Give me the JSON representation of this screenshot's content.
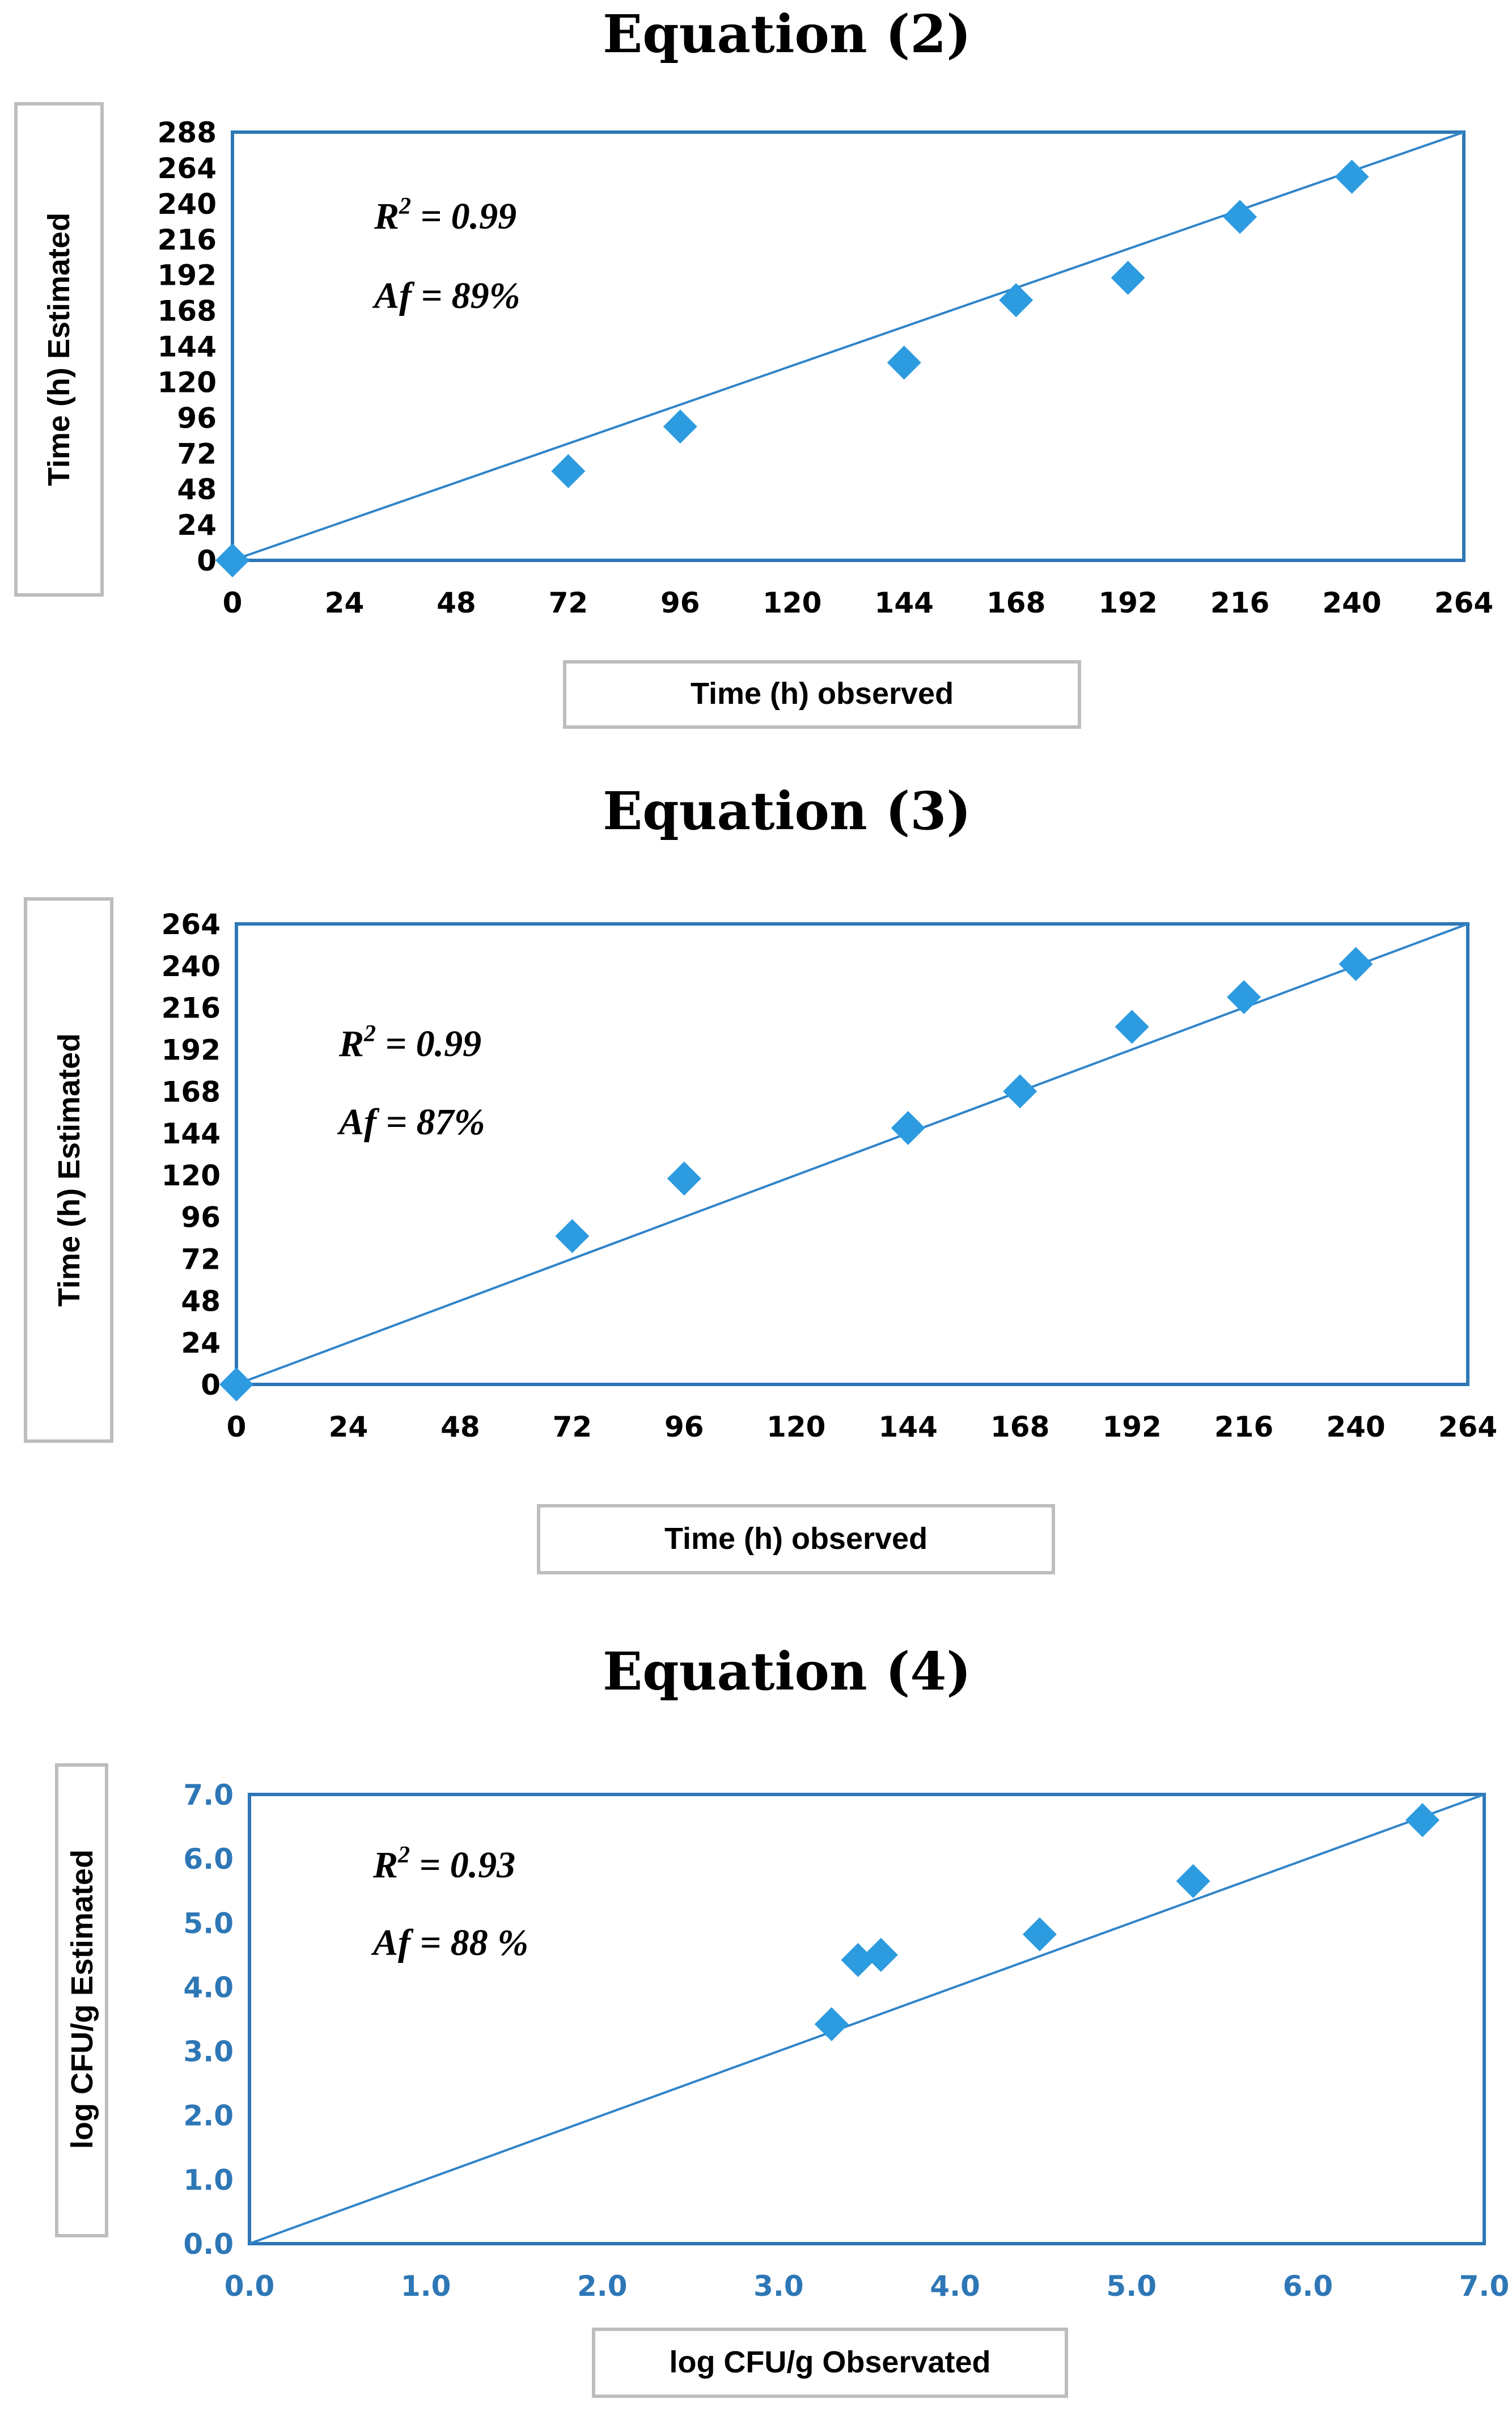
{
  "colors": {
    "frame": "#2e77b6",
    "marker": "#2d9be0",
    "line": "#2e84c9",
    "blue_tick": "#2e77b6"
  },
  "chart_data": [
    {
      "type": "scatter",
      "title": "Equation (2)",
      "xlabel": "Time  (h) observed",
      "ylabel": "Time  (h) Estimated",
      "xlim": [
        0,
        264
      ],
      "ylim": [
        0,
        288
      ],
      "xticks": [
        "0",
        "24",
        "48",
        "72",
        "96",
        "120",
        "144",
        "168",
        "192",
        "216",
        "240",
        "264"
      ],
      "yticks": [
        "0",
        "24",
        "48",
        "72",
        "96",
        "120",
        "144",
        "168",
        "192",
        "216",
        "240",
        "264",
        "288"
      ],
      "tick_color": "black",
      "x": [
        0,
        72,
        96,
        144,
        168,
        192,
        216,
        240
      ],
      "y": [
        0,
        60,
        90,
        133,
        175,
        190,
        231,
        258
      ],
      "fit_line": {
        "from": [
          0,
          0
        ],
        "to": [
          264,
          288
        ]
      },
      "annotations": {
        "r2": "0.99",
        "af": "89%"
      }
    },
    {
      "type": "scatter",
      "title": "Equation (3)",
      "xlabel": "Time  (h) observed",
      "ylabel": "Time  (h) Estimated",
      "xlim": [
        0,
        264
      ],
      "ylim": [
        0,
        264
      ],
      "xticks": [
        "0",
        "24",
        "48",
        "72",
        "96",
        "120",
        "144",
        "168",
        "192",
        "216",
        "240",
        "264"
      ],
      "yticks": [
        "0",
        "24",
        "48",
        "72",
        "96",
        "120",
        "144",
        "168",
        "192",
        "216",
        "240",
        "264"
      ],
      "tick_color": "black",
      "x": [
        0,
        72,
        96,
        144,
        168,
        192,
        216,
        240
      ],
      "y": [
        0,
        85,
        118,
        147,
        168,
        205,
        222,
        241
      ],
      "fit_line": {
        "from": [
          0,
          0
        ],
        "to": [
          264,
          264
        ]
      },
      "annotations": {
        "r2": "0.99",
        "af": "87%"
      }
    },
    {
      "type": "scatter",
      "title": "Equation (4)",
      "xlabel": "log CFU/g  Observated",
      "ylabel": "log CFU/g  Estimated",
      "xlim": [
        0,
        7
      ],
      "ylim": [
        0,
        7
      ],
      "xticks": [
        "0.0",
        "1.0",
        "2.0",
        "3.0",
        "4.0",
        "5.0",
        "6.0",
        "7.0"
      ],
      "yticks": [
        "0.0",
        "1.0",
        "2.0",
        "3.0",
        "4.0",
        "5.0",
        "6.0",
        "7.0"
      ],
      "tick_color": "blue",
      "x": [
        3.3,
        3.45,
        3.58,
        4.48,
        5.35,
        6.65
      ],
      "y": [
        3.42,
        4.42,
        4.5,
        4.82,
        5.65,
        6.6
      ],
      "fit_line": {
        "from": [
          0,
          0
        ],
        "to": [
          7,
          7
        ]
      },
      "annotations": {
        "r2": "0.93",
        "af": "88 %"
      }
    }
  ]
}
